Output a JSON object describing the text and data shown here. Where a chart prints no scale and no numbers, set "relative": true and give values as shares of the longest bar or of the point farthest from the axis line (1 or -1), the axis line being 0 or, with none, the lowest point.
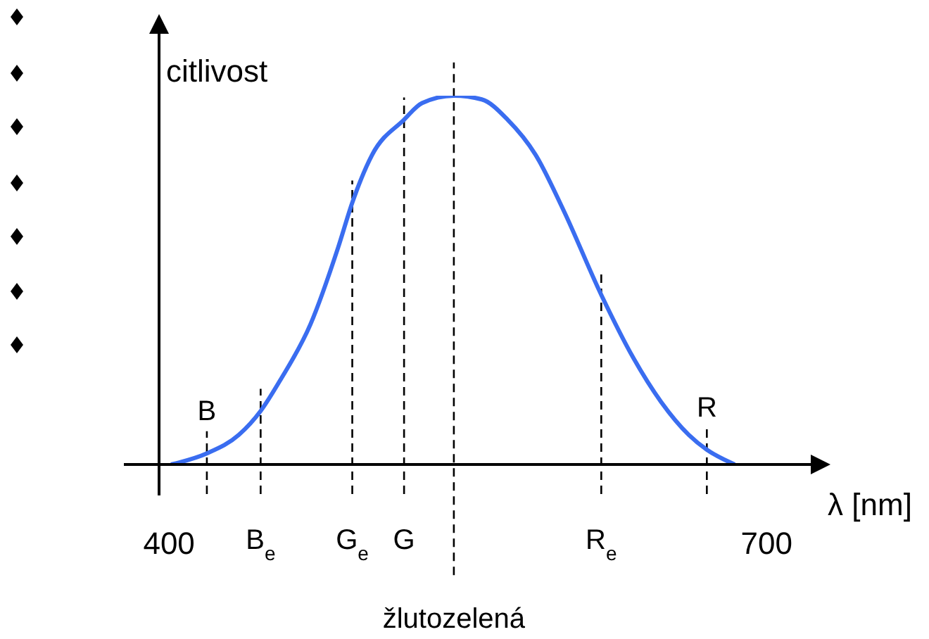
{
  "chart_data": {
    "type": "line",
    "relative": true,
    "xlabel": "λ [nm]",
    "ylabel": "citlivost",
    "color": "#3a6df0",
    "marker": "none",
    "line_style": "solid",
    "grid": false,
    "legend": false,
    "x": [
      401,
      419,
      435,
      446,
      456,
      471,
      485,
      492,
      502,
      518,
      527,
      543,
      557,
      570,
      584,
      598,
      617,
      633,
      647,
      661,
      670,
      684
    ],
    "values": [
      0,
      0.03,
      0.08,
      0.145,
      0.23,
      0.38,
      0.59,
      0.71,
      0.84,
      0.935,
      0.98,
      1,
      0.99,
      0.935,
      0.84,
      0.69,
      0.46,
      0.29,
      0.17,
      0.08,
      0.04,
      0
    ],
    "xlim": [
      395,
      725
    ],
    "xticks": [
      400,
      700
    ],
    "ref_lines": [
      {
        "axis": "x",
        "value": 419,
        "label": "B",
        "line_style": "dashed",
        "color": "#000000"
      },
      {
        "axis": "x",
        "value": 446,
        "label": "B$_{e}$",
        "line_style": "dashed",
        "color": "#000000"
      },
      {
        "axis": "x",
        "value": 492,
        "label": "G$_{e}$",
        "line_style": "dashed",
        "color": "#000000"
      },
      {
        "axis": "x",
        "value": 518,
        "label": "G",
        "line_style": "dashed",
        "color": "#000000"
      },
      {
        "axis": "x",
        "value": 543,
        "label": "žlutozelená",
        "line_style": "dashed",
        "color": "#000000"
      },
      {
        "axis": "x",
        "value": 617,
        "label": "R$_{e}$",
        "line_style": "dashed",
        "color": "#000000"
      },
      {
        "axis": "x",
        "value": 670,
        "label": "R",
        "line_style": "dashed",
        "color": "#000000"
      }
    ]
  }
}
